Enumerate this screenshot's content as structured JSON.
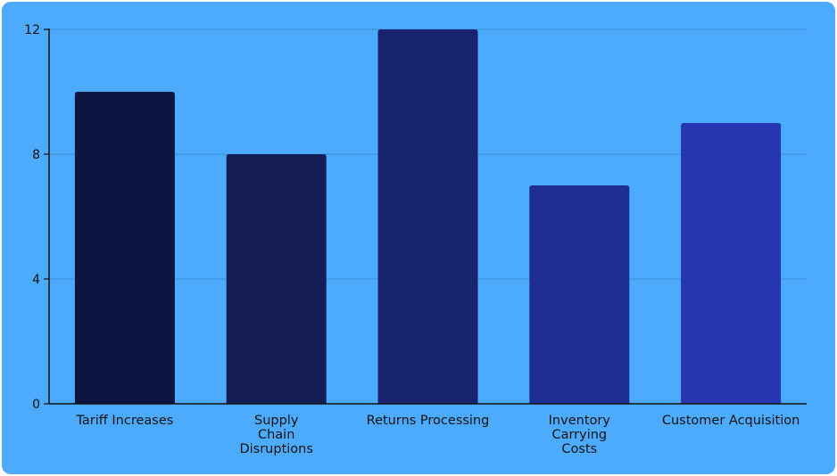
{
  "chart_data": {
    "type": "bar",
    "categories": [
      [
        "Tariff Increases"
      ],
      [
        "Supply",
        "Chain",
        "Disruptions"
      ],
      [
        "Returns Processing"
      ],
      [
        "Inventory",
        "Carrying",
        "Costs"
      ],
      [
        "Customer Acquisition"
      ]
    ],
    "values": [
      10,
      8,
      12,
      7,
      9
    ],
    "colors": [
      "#0d1640",
      "#141d55",
      "#19246e",
      "#1e2f91",
      "#2637b1"
    ],
    "ylim": [
      0,
      12
    ],
    "yticks": [
      0,
      4,
      8,
      12
    ],
    "grid": true,
    "gridColor": "#3a8fd8",
    "title": "",
    "xlabel": "",
    "ylabel": ""
  }
}
